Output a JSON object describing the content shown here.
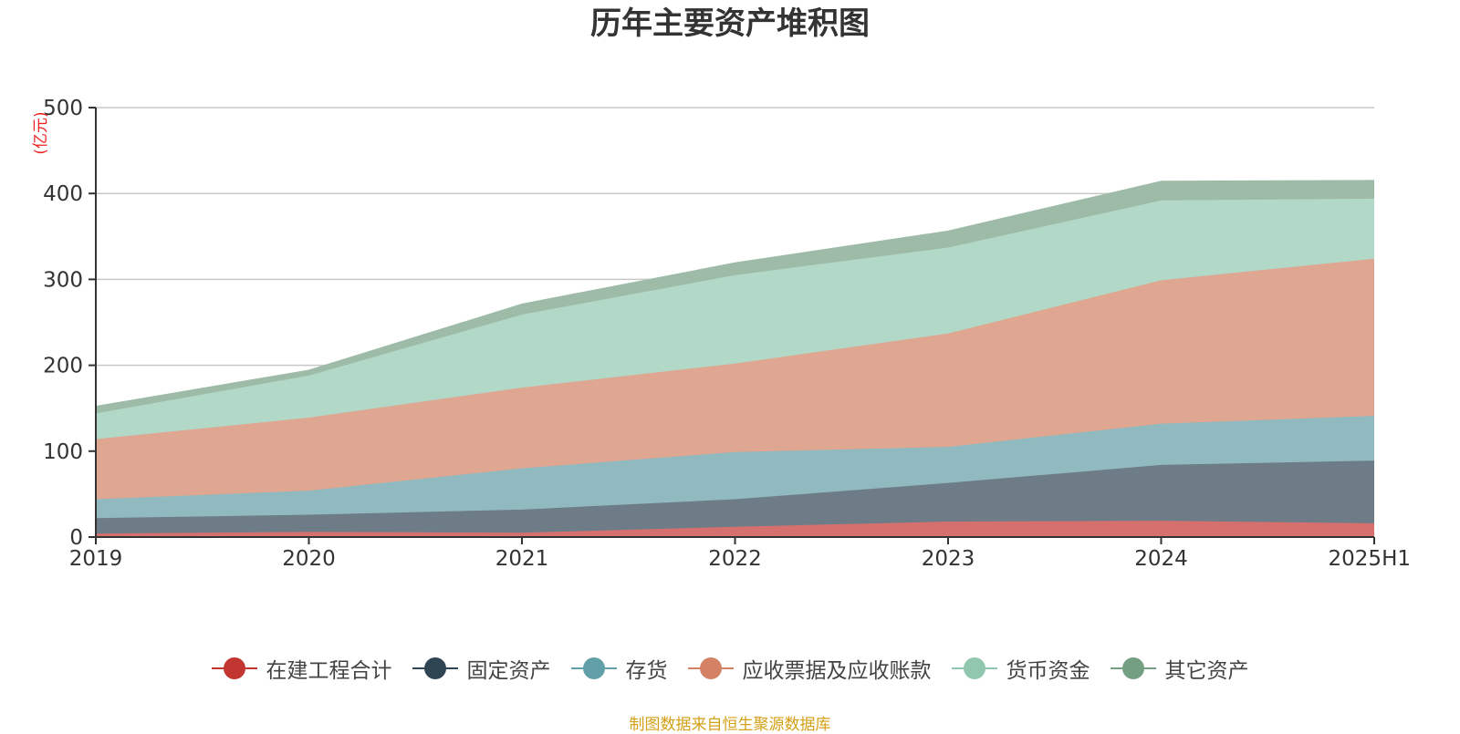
{
  "title": "历年主要资产堆积图",
  "source_note": "制图数据来自恒生聚源数据库",
  "chart_data": {
    "type": "area",
    "stacked": true,
    "title": "历年主要资产堆积图",
    "unit_label": "(亿元)",
    "ylim": [
      0,
      500
    ],
    "yticks": [
      0,
      100,
      200,
      300,
      400,
      500
    ],
    "grid": true,
    "legend_position": "bottom",
    "categories": [
      "2019",
      "2020",
      "2021",
      "2022",
      "2023",
      "2024",
      "2025H1"
    ],
    "series": [
      {
        "name": "在建工程合计",
        "color": "#c23531",
        "fill": "#d6706e",
        "values": [
          4,
          6,
          5,
          12,
          18,
          19,
          16
        ]
      },
      {
        "name": "固定资产",
        "color": "#2f4554",
        "fill": "#6e7c87",
        "values": [
          18,
          20,
          27,
          32,
          45,
          65,
          73
        ]
      },
      {
        "name": "存货",
        "color": "#61a0a8",
        "fill": "#90babf",
        "values": [
          22,
          28,
          48,
          55,
          42,
          48,
          52
        ]
      },
      {
        "name": "应收票据及应收账款",
        "color": "#d48265",
        "fill": "#dfa692",
        "values": [
          70,
          85,
          94,
          103,
          132,
          167,
          183
        ]
      },
      {
        "name": "货币资金",
        "color": "#91c7ae",
        "fill": "#b2d8c7",
        "values": [
          30,
          49,
          85,
          103,
          100,
          93,
          70
        ]
      },
      {
        "name": "其它资产",
        "color": "#749f83",
        "fill": "#9dbba7",
        "values": [
          8,
          6,
          12,
          14,
          19,
          22,
          21
        ]
      }
    ]
  }
}
